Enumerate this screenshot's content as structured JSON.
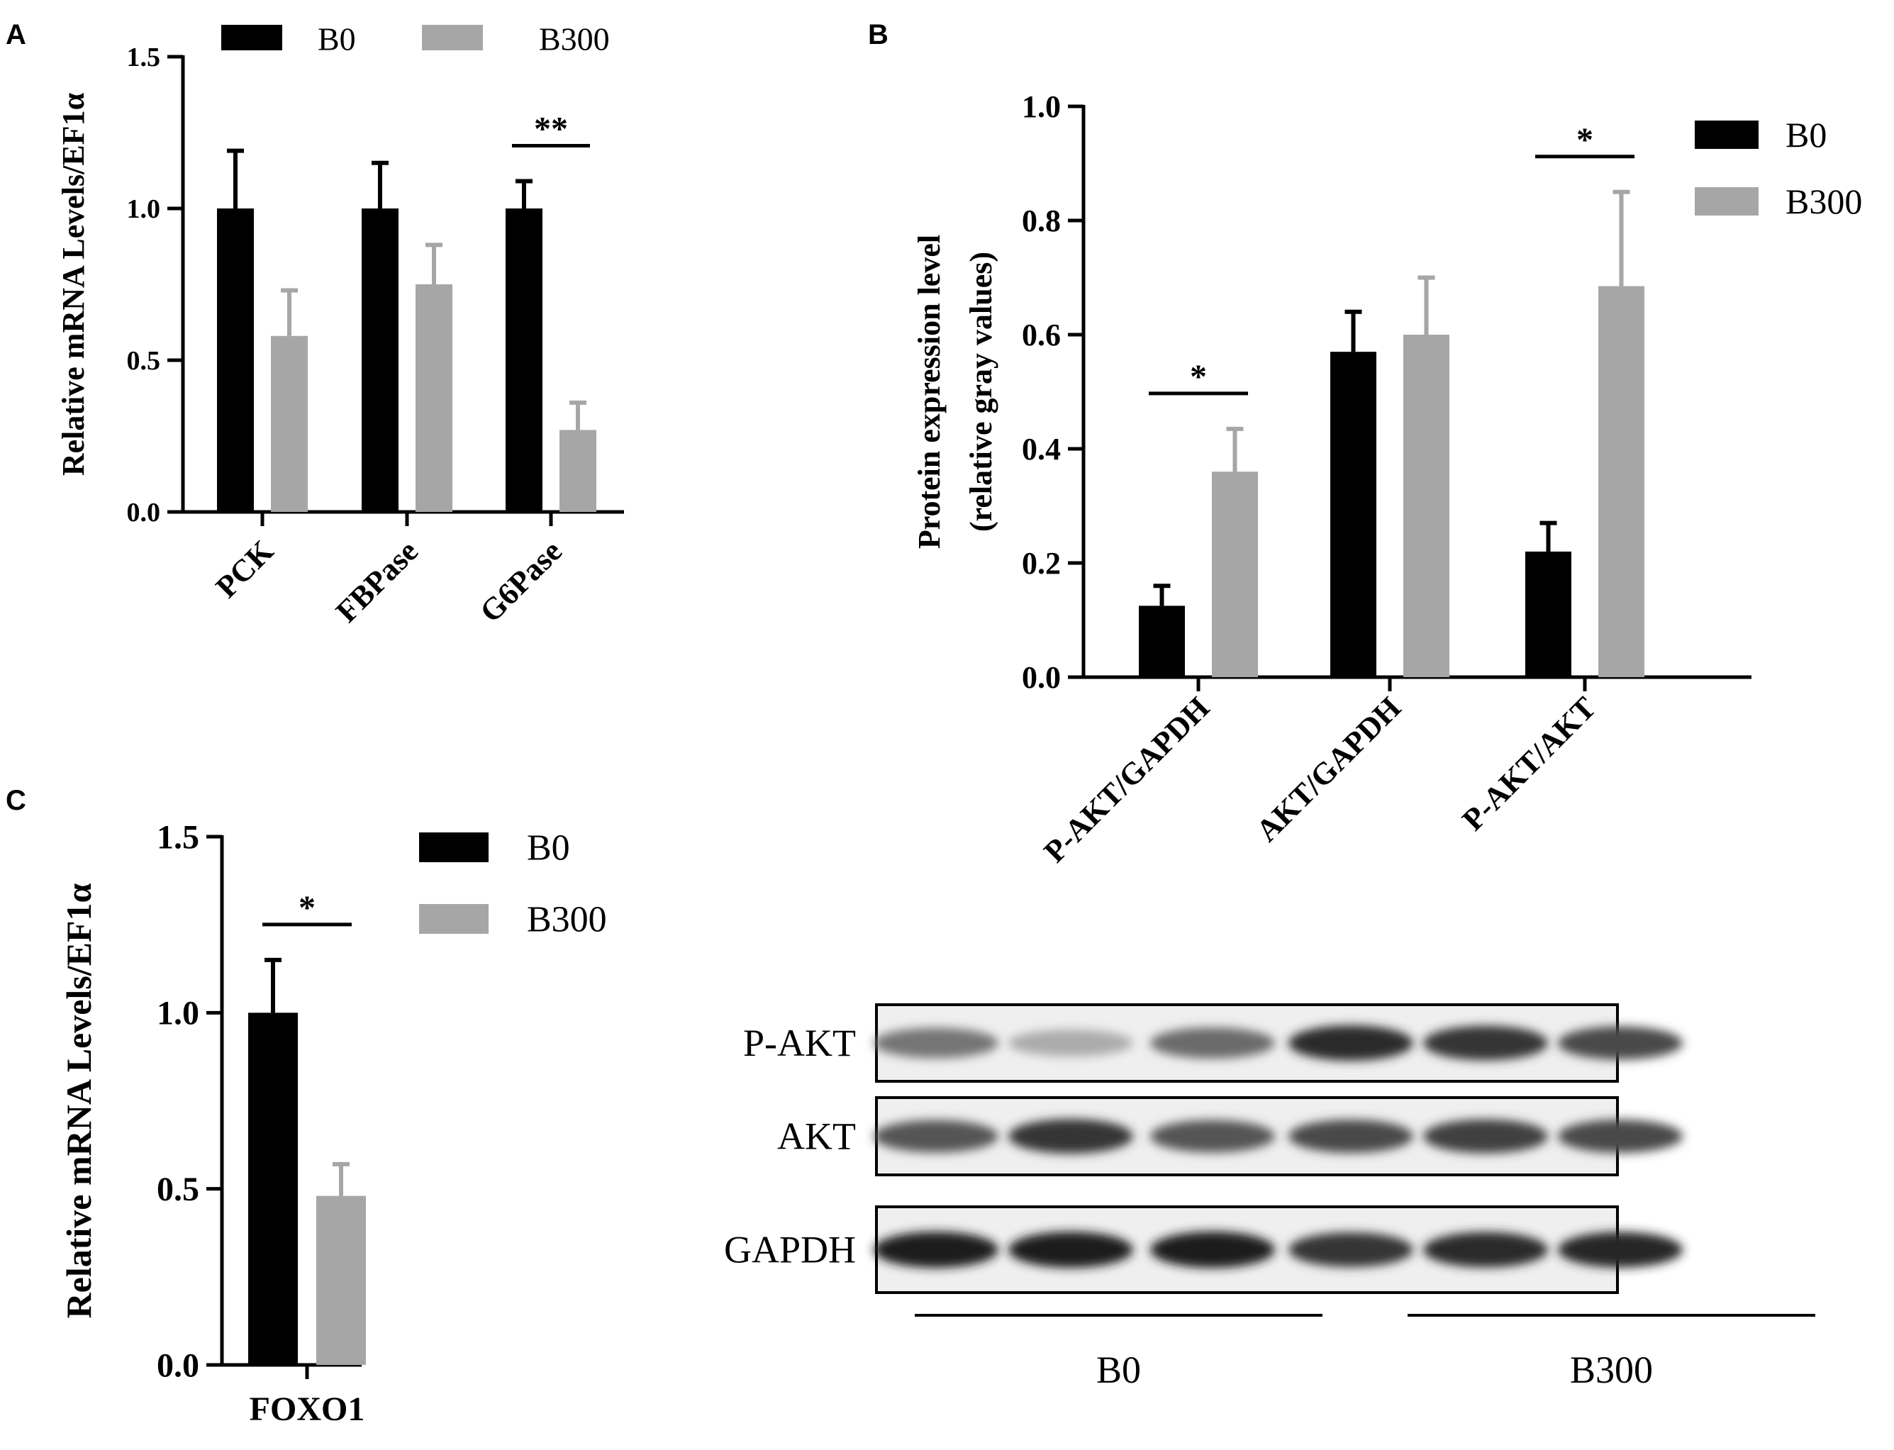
{
  "colors": {
    "b0": "#000000",
    "b300": "#a6a6a6",
    "axis": "#000000"
  },
  "panels": {
    "a": {
      "letter": "A"
    },
    "b": {
      "letter": "B"
    },
    "c": {
      "letter": "C"
    }
  },
  "chart_data": [
    {
      "id": "panel-a",
      "type": "bar",
      "title": "",
      "xlabel": "",
      "ylabel": "Relative mRNA Levels/EF1α",
      "ylim": [
        0,
        1.5
      ],
      "yticks": [
        "0.0",
        "0.5",
        "1.0",
        "1.5"
      ],
      "yticks_values": [
        0,
        0.5,
        1.0,
        1.5
      ],
      "categories": [
        "PCK",
        "FBPase",
        "G6Pase"
      ],
      "series": [
        {
          "name": "B0",
          "values": [
            1.0,
            1.0,
            1.0
          ],
          "errors": [
            0.19,
            0.15,
            0.09
          ]
        },
        {
          "name": "B300",
          "values": [
            0.58,
            0.75,
            0.27
          ],
          "errors": [
            0.15,
            0.13,
            0.09
          ]
        }
      ],
      "significance": [
        {
          "category": "G6Pase",
          "label": "**"
        }
      ],
      "legend": {
        "position": "top",
        "entries": [
          "B0",
          "B300"
        ]
      },
      "grid": false
    },
    {
      "id": "panel-b",
      "type": "bar",
      "title": "",
      "xlabel": "",
      "ylabel": "Protein expression level",
      "ylabel2": "(relative gray values)",
      "ylim": [
        0,
        1.0
      ],
      "yticks": [
        "0.0",
        "0.2",
        "0.4",
        "0.6",
        "0.8",
        "1.0"
      ],
      "yticks_values": [
        0,
        0.2,
        0.4,
        0.6,
        0.8,
        1.0
      ],
      "categories": [
        "P-AKT/GAPDH",
        "AKT/GAPDH",
        "P-AKT/AKT"
      ],
      "series": [
        {
          "name": "B0",
          "values": [
            0.125,
            0.57,
            0.22
          ],
          "errors": [
            0.035,
            0.07,
            0.05
          ]
        },
        {
          "name": "B300",
          "values": [
            0.36,
            0.6,
            0.685
          ],
          "errors": [
            0.075,
            0.1,
            0.165
          ]
        }
      ],
      "significance": [
        {
          "category": "P-AKT/GAPDH",
          "label": "*"
        },
        {
          "category": "P-AKT/AKT",
          "label": "*"
        }
      ],
      "legend": {
        "position": "right",
        "entries": [
          "B0",
          "B300"
        ]
      },
      "grid": false
    },
    {
      "id": "panel-c",
      "type": "bar",
      "title": "",
      "xlabel": "",
      "ylabel": "Relative mRNA Levels/EF1α",
      "ylim": [
        0,
        1.5
      ],
      "yticks": [
        "0.0",
        "0.5",
        "1.0",
        "1.5"
      ],
      "yticks_values": [
        0,
        0.5,
        1.0,
        1.5
      ],
      "categories": [
        "FOXO1"
      ],
      "series": [
        {
          "name": "B0",
          "values": [
            1.0
          ],
          "errors": [
            0.15
          ]
        },
        {
          "name": "B300",
          "values": [
            0.48
          ],
          "errors": [
            0.09
          ]
        }
      ],
      "significance": [
        {
          "category": "FOXO1",
          "label": "*"
        }
      ],
      "legend": {
        "position": "right",
        "entries": [
          "B0",
          "B300"
        ]
      },
      "grid": false
    }
  ],
  "blot": {
    "rows": [
      {
        "label": "P-AKT",
        "intensity": [
          0.55,
          0.3,
          0.6,
          0.9,
          0.85,
          0.75
        ]
      },
      {
        "label": "AKT",
        "intensity": [
          0.7,
          0.85,
          0.7,
          0.75,
          0.8,
          0.75
        ]
      },
      {
        "label": "GAPDH",
        "intensity": [
          0.95,
          0.95,
          0.97,
          0.85,
          0.9,
          0.92
        ]
      }
    ],
    "groups": [
      "B0",
      "B300"
    ]
  }
}
